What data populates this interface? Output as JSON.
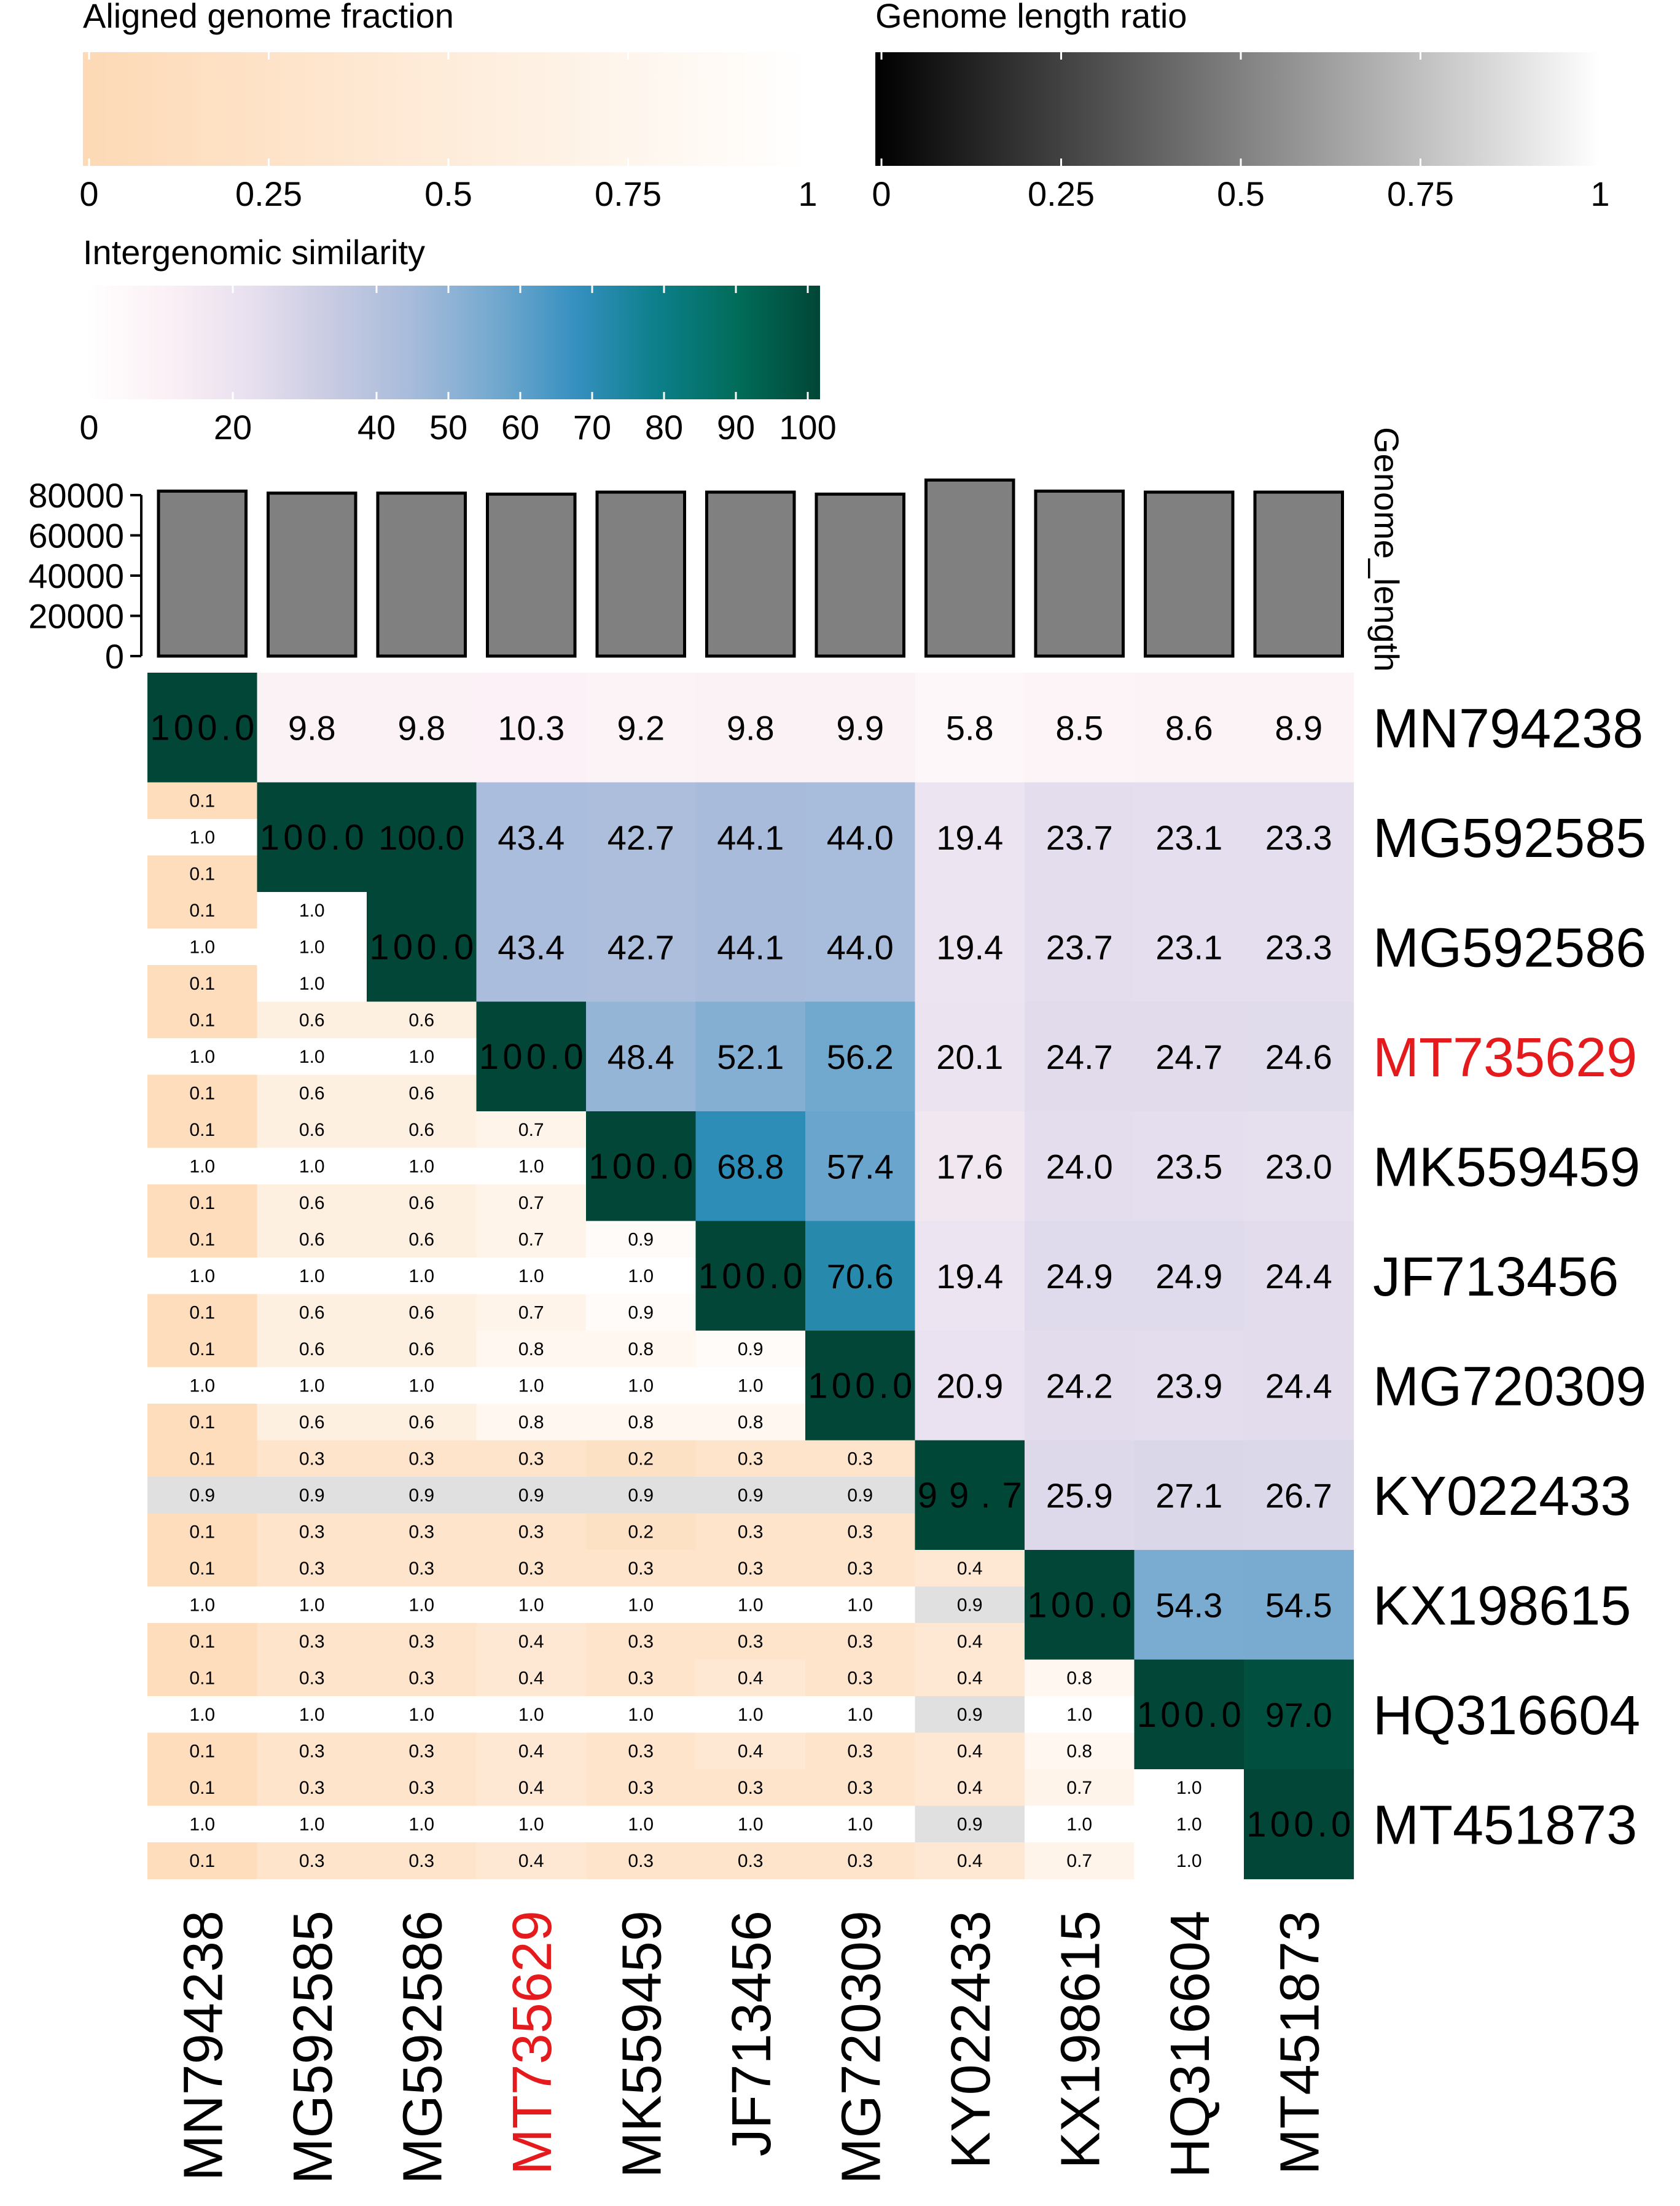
{
  "legends": {
    "aligned": {
      "title": "Aligned genome fraction",
      "ticks": [
        "0",
        "0.25",
        "0.5",
        "0.75",
        "1"
      ]
    },
    "length_ratio": {
      "title": "Genome length ratio",
      "ticks": [
        "0",
        "0.25",
        "0.5",
        "0.75",
        "1"
      ]
    },
    "similarity": {
      "title": "Intergenomic similarity",
      "ticks": [
        "0",
        "20",
        "40",
        "50",
        "60",
        "70",
        "80",
        "90",
        "100"
      ]
    }
  },
  "colors": {
    "aligned_low": "#fdd9b5",
    "aligned_high": "#ffffff",
    "ratio_low": "#000000",
    "ratio_high": "#ffffff",
    "similarity_stops": [
      "#ffffff",
      "#fbf0f5",
      "#e8e0ef",
      "#c8cbe2",
      "#a7bbdb",
      "#74a9cf",
      "#3690c0",
      "#0c7f8a",
      "#016c59",
      "#014636"
    ],
    "bar_fill": "#808080",
    "highlight_label": "#e41a1c"
  },
  "chart_data": {
    "type": "heatmap",
    "genomes": [
      "MN794238",
      "MG592585",
      "MG592586",
      "MT735629",
      "MK559459",
      "JF713456",
      "MG720309",
      "KY022433",
      "KX198615",
      "HQ316604",
      "MT451873"
    ],
    "highlight": "MT735629",
    "bar_axis_label": "Genome_length",
    "bar_axis_ticks": [
      "0",
      "20000",
      "40000",
      "60000",
      "80000"
    ],
    "bar_ylim": [
      0,
      90000
    ],
    "genome_lengths": [
      82000,
      81000,
      81000,
      80500,
      81500,
      81500,
      80500,
      87500,
      82000,
      81500,
      81500
    ],
    "similarity_labels": [
      [
        "100.0",
        "9.8",
        "9.8",
        "10.3",
        "9.2",
        "9.8",
        "9.9",
        "5.8",
        "8.5",
        "8.6",
        "8.9"
      ],
      [
        "",
        "100.0",
        "100.0",
        "43.4",
        "42.7",
        "44.1",
        "44.0",
        "19.4",
        "23.7",
        "23.1",
        "23.3"
      ],
      [
        "",
        "",
        "100.0",
        "43.4",
        "42.7",
        "44.1",
        "44.0",
        "19.4",
        "23.7",
        "23.1",
        "23.3"
      ],
      [
        "",
        "",
        "",
        "100.0",
        "48.4",
        "52.1",
        "56.2",
        "20.1",
        "24.7",
        "24.7",
        "24.6"
      ],
      [
        "",
        "",
        "",
        "",
        "100.0",
        "68.8",
        "57.4",
        "17.6",
        "24.0",
        "23.5",
        "23.0"
      ],
      [
        "",
        "",
        "",
        "",
        "",
        "100.0",
        "70.6",
        "19.4",
        "24.9",
        "24.9",
        "24.4"
      ],
      [
        "",
        "",
        "",
        "",
        "",
        "",
        "100.0",
        "20.9",
        "24.2",
        "23.9",
        "24.4"
      ],
      [
        "",
        "",
        "",
        "",
        "",
        "",
        "",
        "99.7",
        "25.9",
        "27.1",
        "26.7"
      ],
      [
        "",
        "",
        "",
        "",
        "",
        "",
        "",
        "",
        "100.0",
        "54.3",
        "54.5"
      ],
      [
        "",
        "",
        "",
        "",
        "",
        "",
        "",
        "",
        "",
        "100.0",
        "97.0"
      ],
      [
        "",
        "",
        "",
        "",
        "",
        "",
        "",
        "",
        "",
        "",
        "100.0"
      ]
    ],
    "fraction_top_labels": [
      [
        "",
        "",
        "",
        "",
        "",
        "",
        "",
        "",
        "",
        "",
        ""
      ],
      [
        "0.1",
        "",
        "",
        "",
        "",
        "",
        "",
        "",
        "",
        "",
        ""
      ],
      [
        "0.1",
        "1.0",
        "",
        "",
        "",
        "",
        "",
        "",
        "",
        "",
        ""
      ],
      [
        "0.1",
        "0.6",
        "0.6",
        "",
        "",
        "",
        "",
        "",
        "",
        "",
        ""
      ],
      [
        "0.1",
        "0.6",
        "0.6",
        "0.7",
        "",
        "",
        "",
        "",
        "",
        "",
        ""
      ],
      [
        "0.1",
        "0.6",
        "0.6",
        "0.7",
        "0.9",
        "",
        "",
        "",
        "",
        "",
        ""
      ],
      [
        "0.1",
        "0.6",
        "0.6",
        "0.8",
        "0.8",
        "0.9",
        "",
        "",
        "",
        "",
        ""
      ],
      [
        "0.1",
        "0.3",
        "0.3",
        "0.3",
        "0.2",
        "0.3",
        "0.3",
        "",
        "",
        "",
        ""
      ],
      [
        "0.1",
        "0.3",
        "0.3",
        "0.3",
        "0.3",
        "0.3",
        "0.3",
        "0.4",
        "",
        "",
        ""
      ],
      [
        "0.1",
        "0.3",
        "0.3",
        "0.4",
        "0.3",
        "0.4",
        "0.3",
        "0.4",
        "0.8",
        "",
        ""
      ],
      [
        "0.1",
        "0.3",
        "0.3",
        "0.4",
        "0.3",
        "0.3",
        "0.3",
        "0.4",
        "0.7",
        "1.0",
        ""
      ]
    ],
    "length_ratio_labels": [
      [
        "",
        "",
        "",
        "",
        "",
        "",
        "",
        "",
        "",
        "",
        ""
      ],
      [
        "1.0",
        "",
        "",
        "",
        "",
        "",
        "",
        "",
        "",
        "",
        ""
      ],
      [
        "1.0",
        "1.0",
        "",
        "",
        "",
        "",
        "",
        "",
        "",
        "",
        ""
      ],
      [
        "1.0",
        "1.0",
        "1.0",
        "",
        "",
        "",
        "",
        "",
        "",
        "",
        ""
      ],
      [
        "1.0",
        "1.0",
        "1.0",
        "1.0",
        "",
        "",
        "",
        "",
        "",
        "",
        ""
      ],
      [
        "1.0",
        "1.0",
        "1.0",
        "1.0",
        "1.0",
        "",
        "",
        "",
        "",
        "",
        ""
      ],
      [
        "1.0",
        "1.0",
        "1.0",
        "1.0",
        "1.0",
        "1.0",
        "",
        "",
        "",
        "",
        ""
      ],
      [
        "0.9",
        "0.9",
        "0.9",
        "0.9",
        "0.9",
        "0.9",
        "0.9",
        "",
        "",
        "",
        ""
      ],
      [
        "1.0",
        "1.0",
        "1.0",
        "1.0",
        "1.0",
        "1.0",
        "1.0",
        "0.9",
        "",
        "",
        ""
      ],
      [
        "1.0",
        "1.0",
        "1.0",
        "1.0",
        "1.0",
        "1.0",
        "1.0",
        "0.9",
        "1.0",
        "",
        ""
      ],
      [
        "1.0",
        "1.0",
        "1.0",
        "1.0",
        "1.0",
        "1.0",
        "1.0",
        "0.9",
        "1.0",
        "1.0",
        ""
      ]
    ],
    "fraction_bottom_labels": [
      [
        "",
        "",
        "",
        "",
        "",
        "",
        "",
        "",
        "",
        "",
        ""
      ],
      [
        "0.1",
        "",
        "",
        "",
        "",
        "",
        "",
        "",
        "",
        "",
        ""
      ],
      [
        "0.1",
        "1.0",
        "",
        "",
        "",
        "",
        "",
        "",
        "",
        "",
        ""
      ],
      [
        "0.1",
        "0.6",
        "0.6",
        "",
        "",
        "",
        "",
        "",
        "",
        "",
        ""
      ],
      [
        "0.1",
        "0.6",
        "0.6",
        "0.7",
        "",
        "",
        "",
        "",
        "",
        "",
        ""
      ],
      [
        "0.1",
        "0.6",
        "0.6",
        "0.7",
        "0.9",
        "",
        "",
        "",
        "",
        "",
        ""
      ],
      [
        "0.1",
        "0.6",
        "0.6",
        "0.8",
        "0.8",
        "0.8",
        "",
        "",
        "",
        "",
        ""
      ],
      [
        "0.1",
        "0.3",
        "0.3",
        "0.3",
        "0.2",
        "0.3",
        "0.3",
        "",
        "",
        "",
        ""
      ],
      [
        "0.1",
        "0.3",
        "0.3",
        "0.4",
        "0.3",
        "0.3",
        "0.3",
        "0.4",
        "",
        "",
        ""
      ],
      [
        "0.1",
        "0.3",
        "0.3",
        "0.4",
        "0.3",
        "0.4",
        "0.3",
        "0.4",
        "0.8",
        "",
        ""
      ],
      [
        "0.1",
        "0.3",
        "0.3",
        "0.4",
        "0.3",
        "0.3",
        "0.3",
        "0.4",
        "0.7",
        "1.0",
        ""
      ]
    ]
  }
}
